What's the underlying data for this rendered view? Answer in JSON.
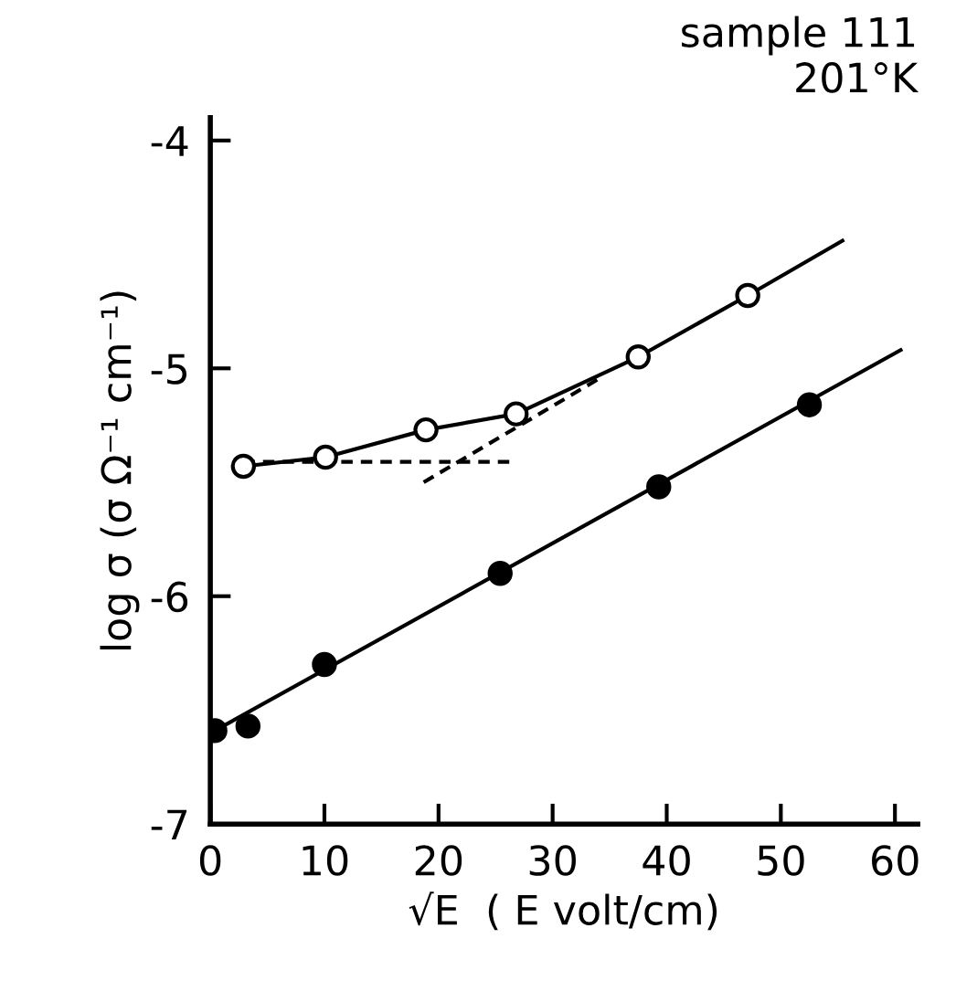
{
  "chart_data": {
    "type": "scatter",
    "title": "sample 111\n201°K",
    "xlabel": "√E  ( E volt/cm)",
    "ylabel": "log σ (σ Ω⁻¹ cm⁻¹)",
    "xlim": [
      0,
      62
    ],
    "ylim": [
      -7,
      -3.9
    ],
    "xticks": [
      0,
      10,
      20,
      30,
      40,
      50,
      60
    ],
    "yticks": [
      -7,
      -6,
      -5,
      -4
    ],
    "grid": false,
    "series": [
      {
        "type": "line",
        "color": "#000000",
        "line_style": "solid",
        "marker": "none",
        "x": [
          2.9,
          10.1,
          18.9,
          26.8,
          37.5,
          47.1,
          55.4
        ],
        "values": [
          -5.43,
          -5.39,
          -5.27,
          -5.2,
          -4.95,
          -4.68,
          -4.44
        ]
      },
      {
        "type": "line",
        "color": "#000000",
        "line_style": "solid",
        "marker": "none",
        "x": [
          0.4,
          60.5
        ],
        "values": [
          -6.59,
          -4.92
        ]
      },
      {
        "type": "line",
        "color": "#000000",
        "line_style": "dashed",
        "marker": "none",
        "x": [
          2.9,
          26.2
        ],
        "values": [
          -5.41,
          -5.41
        ]
      },
      {
        "type": "line",
        "color": "#000000",
        "line_style": "dashed",
        "marker": "none",
        "x": [
          18.7,
          33.9
        ],
        "values": [
          -5.5,
          -5.05
        ]
      },
      {
        "color": "#ffffff",
        "marker": "circle",
        "x": [
          2.9,
          10.1,
          18.9,
          26.8,
          37.5,
          47.1
        ],
        "values": [
          -5.43,
          -5.39,
          -5.27,
          -5.2,
          -4.95,
          -4.68
        ]
      },
      {
        "color": "#000000",
        "marker": "circle",
        "x": [
          0.4,
          3.3,
          10,
          25.4,
          39.3,
          52.5
        ],
        "values": [
          -6.59,
          -6.57,
          -6.3,
          -5.9,
          -5.52,
          -5.16
        ]
      }
    ]
  }
}
